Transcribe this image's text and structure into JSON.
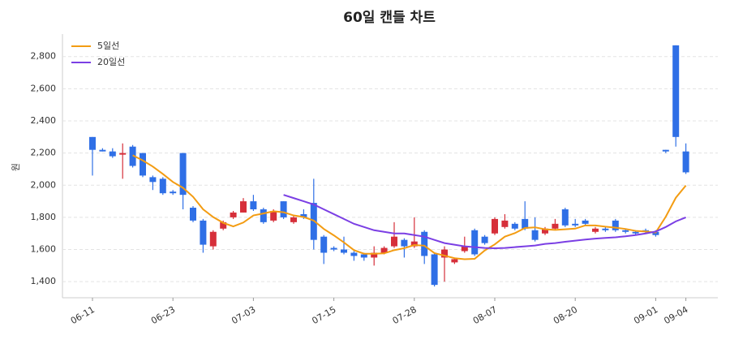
{
  "chart_data": {
    "type": "candlestick",
    "title": "60일 캔들 차트",
    "y_label": "원",
    "categories": [
      "06-11",
      null,
      null,
      null,
      null,
      null,
      null,
      null,
      "06-23",
      null,
      null,
      null,
      null,
      null,
      null,
      null,
      "07-03",
      null,
      null,
      null,
      null,
      null,
      null,
      null,
      "07-15",
      null,
      null,
      null,
      null,
      null,
      null,
      null,
      "07-28",
      null,
      null,
      null,
      null,
      null,
      null,
      null,
      "08-07",
      null,
      null,
      null,
      null,
      null,
      null,
      null,
      "08-20",
      null,
      null,
      null,
      null,
      null,
      null,
      null,
      "09-01",
      null,
      null,
      "09-04"
    ],
    "open": [
      2300,
      2220,
      2210,
      2190,
      2240,
      2200,
      2050,
      2040,
      1960,
      2200,
      1860,
      1780,
      1620,
      1730,
      1800,
      1830,
      1900,
      1850,
      1780,
      1900,
      1770,
      1820,
      1890,
      1680,
      1610,
      1600,
      1580,
      1570,
      1550,
      1580,
      1620,
      1660,
      1620,
      1710,
      1570,
      1550,
      1520,
      1590,
      1720,
      1680,
      1700,
      1740,
      1760,
      1790,
      1720,
      1700,
      1730,
      1850,
      1760,
      1780,
      1710,
      1730,
      1780,
      1720,
      1710,
      1720,
      1710,
      2220,
      2870,
      2210
    ],
    "high": [
      2300,
      2230,
      2230,
      2260,
      2250,
      2200,
      2060,
      2050,
      1970,
      2200,
      1870,
      1790,
      1720,
      1780,
      1840,
      1920,
      1940,
      1860,
      1850,
      1900,
      1810,
      1850,
      2040,
      1690,
      1620,
      1680,
      1590,
      1580,
      1620,
      1620,
      1770,
      1670,
      1800,
      1720,
      1580,
      1620,
      1550,
      1680,
      1730,
      1690,
      1800,
      1820,
      1770,
      1900,
      1800,
      1740,
      1790,
      1860,
      1790,
      1790,
      1740,
      1740,
      1790,
      1730,
      1720,
      1730,
      1720,
      2220,
      2870,
      2260
    ],
    "low": [
      2060,
      2210,
      2170,
      2040,
      2110,
      2050,
      1970,
      1940,
      1940,
      1850,
      1770,
      1580,
      1600,
      1720,
      1790,
      1830,
      1840,
      1760,
      1770,
      1790,
      1760,
      1790,
      1600,
      1510,
      1590,
      1570,
      1530,
      1530,
      1500,
      1570,
      1610,
      1550,
      1610,
      1510,
      1370,
      1400,
      1510,
      1580,
      1560,
      1630,
      1690,
      1730,
      1720,
      1720,
      1650,
      1690,
      1720,
      1740,
      1740,
      1750,
      1700,
      1710,
      1710,
      1700,
      1690,
      1700,
      1680,
      2200,
      2240,
      2070
    ],
    "close": [
      2220,
      2210,
      2180,
      2200,
      2120,
      2060,
      2020,
      1950,
      1950,
      1940,
      1780,
      1630,
      1710,
      1770,
      1830,
      1900,
      1850,
      1770,
      1840,
      1800,
      1800,
      1800,
      1660,
      1580,
      1600,
      1580,
      1560,
      1550,
      1580,
      1610,
      1680,
      1620,
      1650,
      1560,
      1380,
      1600,
      1540,
      1620,
      1570,
      1640,
      1790,
      1780,
      1730,
      1730,
      1660,
      1730,
      1760,
      1750,
      1750,
      1760,
      1730,
      1720,
      1720,
      1710,
      1700,
      1710,
      1690,
      2210,
      2300,
      2080
    ],
    "up_color": "#d62f3a",
    "down_color": "#2f6fe6",
    "series": [
      {
        "name": "5일선",
        "color": "#f39c12",
        "values": [
          null,
          null,
          null,
          null,
          2186,
          2154,
          2116,
          2070,
          2020,
          1984,
          1928,
          1850,
          1802,
          1766,
          1744,
          1768,
          1812,
          1824,
          1838,
          1832,
          1812,
          1802,
          1780,
          1728,
          1688,
          1644,
          1596,
          1574,
          1574,
          1576,
          1596,
          1608,
          1628,
          1624,
          1578,
          1562,
          1546,
          1540,
          1542,
          1594,
          1632,
          1680,
          1702,
          1734,
          1738,
          1726,
          1722,
          1726,
          1730,
          1750,
          1750,
          1742,
          1736,
          1728,
          1716,
          1712,
          1706,
          1804,
          1922,
          1998
        ]
      },
      {
        "name": "20일선",
        "color": "#7b3fe4",
        "values": [
          null,
          null,
          null,
          null,
          null,
          null,
          null,
          null,
          null,
          null,
          null,
          null,
          null,
          null,
          null,
          null,
          null,
          null,
          null,
          1940,
          1920,
          1900,
          1880,
          1850,
          1820,
          1790,
          1760,
          1740,
          1720,
          1710,
          1700,
          1700,
          1690,
          1680,
          1660,
          1640,
          1630,
          1620,
          1615,
          1610,
          1608,
          1610,
          1615,
          1620,
          1625,
          1635,
          1640,
          1648,
          1655,
          1662,
          1668,
          1672,
          1676,
          1682,
          1690,
          1700,
          1712,
          1740,
          1775,
          1800
        ]
      }
    ],
    "ylim": [
      1300,
      2940
    ],
    "yticks": [
      {
        "value": 1400,
        "label": "1,400"
      },
      {
        "value": 1600,
        "label": "1,600"
      },
      {
        "value": 1800,
        "label": "1,800"
      },
      {
        "value": 2000,
        "label": "2,000"
      },
      {
        "value": 2200,
        "label": "2,200"
      },
      {
        "value": 2400,
        "label": "2,400"
      },
      {
        "value": 2600,
        "label": "2,600"
      },
      {
        "value": 2800,
        "label": "2,800"
      }
    ],
    "grid": true,
    "legend": "upper-left"
  }
}
